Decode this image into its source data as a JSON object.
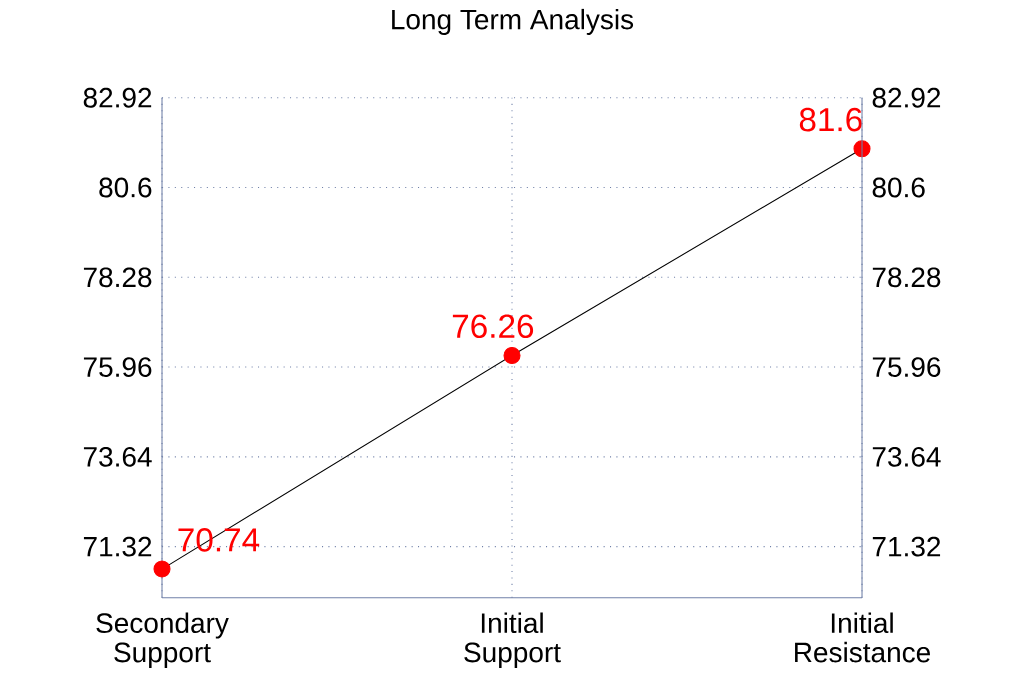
{
  "chart_data": {
    "type": "line",
    "title": "Long Term Analysis",
    "categories": [
      "Secondary Support",
      "Initial Support",
      "Initial Resistance"
    ],
    "values": [
      70.74,
      76.26,
      81.6
    ],
    "color": "#ff0000",
    "marker": "circle",
    "line_style": "solid",
    "data_labels": true,
    "grid": true,
    "ylim": [
      70.0,
      82.92
    ],
    "yticks": [
      71.32,
      73.64,
      75.96,
      78.28,
      80.6,
      82.92
    ],
    "y2lim": [
      70.0,
      82.92
    ],
    "y2ticks": [
      71.32,
      73.64,
      75.96,
      78.28,
      80.6,
      82.92
    ]
  }
}
